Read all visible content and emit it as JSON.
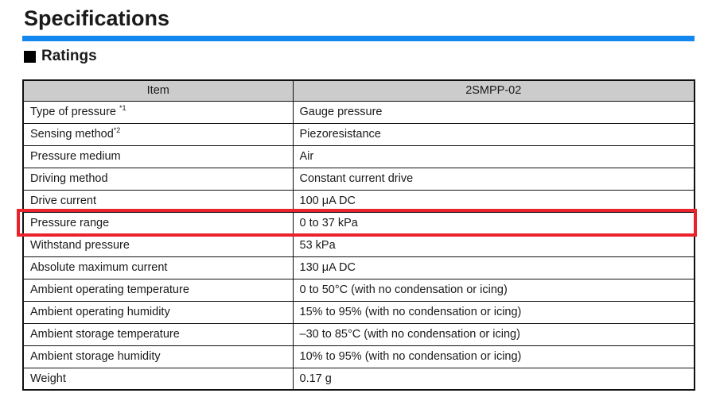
{
  "page": {
    "title": "Specifications",
    "section_heading": "Ratings",
    "accent_blue": "#1287ef",
    "highlight_red": "#e9222b",
    "table_header_bg": "#cccccc"
  },
  "table": {
    "headers": {
      "item": "Item",
      "value": "2SMPP-02"
    },
    "rows": [
      {
        "item": "Type of pressure ",
        "sup": "*1",
        "value": "Gauge pressure",
        "highlighted": false
      },
      {
        "item": "Sensing method",
        "sup": "*2",
        "value": "Piezoresistance",
        "highlighted": false
      },
      {
        "item": "Pressure medium",
        "sup": "",
        "value": "Air",
        "highlighted": false
      },
      {
        "item": "Driving method",
        "sup": "",
        "value": "Constant current drive",
        "highlighted": false
      },
      {
        "item": "Drive current",
        "sup": "",
        "value": "100 μA DC",
        "highlighted": false
      },
      {
        "item": "Pressure range",
        "sup": "",
        "value": "0 to 37 kPa",
        "highlighted": true
      },
      {
        "item": "Withstand pressure",
        "sup": "",
        "value": "53 kPa",
        "highlighted": false
      },
      {
        "item": "Absolute maximum current",
        "sup": "",
        "value": "130 μA DC",
        "highlighted": false
      },
      {
        "item": "Ambient operating temperature",
        "sup": "",
        "value": "0 to 50°C (with no condensation or icing)",
        "highlighted": false
      },
      {
        "item": "Ambient operating humidity",
        "sup": "",
        "value": "15% to 95% (with no condensation or icing)",
        "highlighted": false
      },
      {
        "item": "Ambient storage temperature",
        "sup": "",
        "value": "–30 to 85°C (with no condensation or icing)",
        "highlighted": false
      },
      {
        "item": "Ambient storage humidity",
        "sup": "",
        "value": "10% to 95% (with no condensation or icing)",
        "highlighted": false
      },
      {
        "item": "Weight",
        "sup": "",
        "value": "0.17 g",
        "highlighted": false
      }
    ]
  }
}
